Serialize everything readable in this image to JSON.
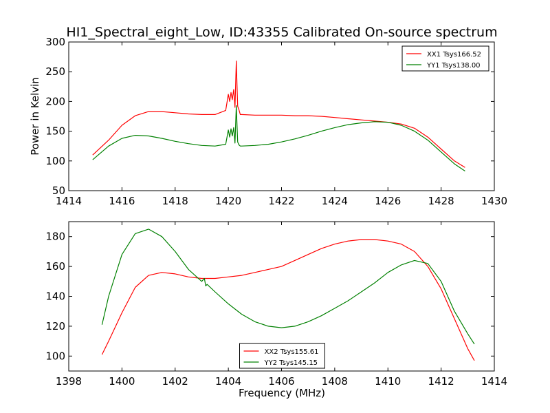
{
  "chart_data": [
    {
      "type": "line",
      "title": "HI1_Spectral_eight_Low, ID:43355 Calibrated On-source spectrum",
      "xlabel": "",
      "ylabel": "Power in Kelvin",
      "xlim": [
        1414,
        1430
      ],
      "ylim": [
        50,
        300
      ],
      "xticks": [
        "1414",
        "1416",
        "1418",
        "1420",
        "1422",
        "1424",
        "1426",
        "1428",
        "1430"
      ],
      "yticks": [
        "50",
        "100",
        "150",
        "200",
        "250",
        "300"
      ],
      "legend_position": "top-right",
      "grid": false,
      "series": [
        {
          "name": "XX1 Tsys166.52",
          "color": "#ff0000",
          "x": [
            1414.9,
            1415.5,
            1416.0,
            1416.5,
            1417.0,
            1417.5,
            1418.0,
            1418.5,
            1419.0,
            1419.5,
            1419.9,
            1420.0,
            1420.05,
            1420.1,
            1420.15,
            1420.2,
            1420.25,
            1420.3,
            1420.35,
            1420.4,
            1420.45,
            1420.5,
            1421.0,
            1421.5,
            1422.0,
            1422.5,
            1423.0,
            1423.5,
            1424.0,
            1424.5,
            1425.0,
            1425.5,
            1426.0,
            1426.5,
            1427.0,
            1427.5,
            1428.0,
            1428.5,
            1428.9
          ],
          "values": [
            110,
            135,
            160,
            176,
            183,
            183,
            181,
            179,
            178,
            178,
            185,
            212,
            200,
            215,
            203,
            220,
            190,
            268,
            192,
            186,
            178,
            178,
            177,
            177,
            177,
            176,
            176,
            175,
            173,
            171,
            169,
            167,
            165,
            162,
            155,
            140,
            120,
            100,
            89
          ]
        },
        {
          "name": "YY1 Tsys138.00",
          "color": "#008000",
          "x": [
            1414.9,
            1415.5,
            1416.0,
            1416.5,
            1417.0,
            1417.5,
            1418.0,
            1418.5,
            1419.0,
            1419.5,
            1419.9,
            1420.0,
            1420.05,
            1420.1,
            1420.15,
            1420.2,
            1420.25,
            1420.3,
            1420.35,
            1420.4,
            1420.45,
            1420.5,
            1421.0,
            1421.5,
            1422.0,
            1422.5,
            1423.0,
            1423.5,
            1424.0,
            1424.5,
            1425.0,
            1425.5,
            1426.0,
            1426.5,
            1427.0,
            1427.5,
            1428.0,
            1428.5,
            1428.9
          ],
          "values": [
            102,
            125,
            138,
            143,
            142,
            138,
            133,
            129,
            126,
            125,
            128,
            152,
            140,
            154,
            142,
            156,
            130,
            193,
            132,
            127,
            125,
            125,
            126,
            128,
            132,
            137,
            143,
            150,
            156,
            161,
            164,
            166,
            165,
            160,
            150,
            135,
            115,
            95,
            83
          ]
        }
      ]
    },
    {
      "type": "line",
      "title": "",
      "xlabel": "Frequency (MHz)",
      "ylabel": "",
      "xlim": [
        1398,
        1414
      ],
      "ylim": [
        90,
        190
      ],
      "xticks": [
        "1398",
        "1400",
        "1402",
        "1404",
        "1406",
        "1408",
        "1410",
        "1412",
        "1414"
      ],
      "yticks": [
        "100",
        "120",
        "140",
        "160",
        "180"
      ],
      "legend_position": "bottom-center",
      "grid": false,
      "series": [
        {
          "name": "XX2 Tsys155.61",
          "color": "#ff0000",
          "x": [
            1399.25,
            1399.5,
            1400.0,
            1400.5,
            1401.0,
            1401.5,
            1402.0,
            1402.5,
            1403.0,
            1403.5,
            1404.0,
            1404.5,
            1405.0,
            1405.5,
            1406.0,
            1406.5,
            1407.0,
            1407.5,
            1408.0,
            1408.5,
            1409.0,
            1409.5,
            1410.0,
            1410.5,
            1411.0,
            1411.5,
            1412.0,
            1412.5,
            1413.0,
            1413.25
          ],
          "values": [
            101,
            110,
            129,
            146,
            154,
            156,
            155,
            153,
            152,
            152,
            153,
            154,
            156,
            158,
            160,
            164,
            168,
            172,
            175,
            177,
            178,
            178,
            177,
            175,
            170,
            160,
            145,
            125,
            105,
            97
          ]
        },
        {
          "name": "YY2 Tsys145.15",
          "color": "#008000",
          "x": [
            1399.25,
            1399.5,
            1400.0,
            1400.5,
            1401.0,
            1401.5,
            1402.0,
            1402.5,
            1403.0,
            1403.1,
            1403.15,
            1403.2,
            1403.5,
            1404.0,
            1404.5,
            1405.0,
            1405.5,
            1406.0,
            1406.5,
            1407.0,
            1407.5,
            1408.0,
            1408.5,
            1409.0,
            1409.5,
            1410.0,
            1410.5,
            1411.0,
            1411.5,
            1412.0,
            1412.5,
            1413.0,
            1413.25
          ],
          "values": [
            121,
            140,
            168,
            182,
            185,
            180,
            170,
            158,
            150,
            152,
            147,
            148,
            143,
            135,
            128,
            123,
            120,
            119,
            120,
            123,
            127,
            132,
            137,
            143,
            149,
            156,
            161,
            164,
            162,
            150,
            130,
            115,
            108
          ]
        }
      ]
    }
  ]
}
